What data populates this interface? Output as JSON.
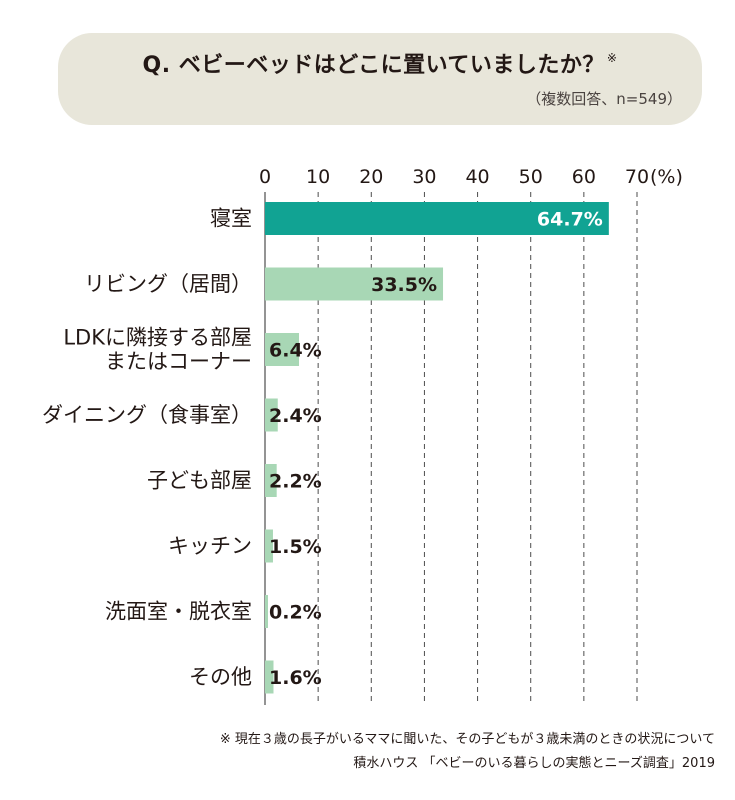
{
  "question": {
    "title": "Q. ベビーベッドはどこに置いていましたか？",
    "mark": "※",
    "note": "（複数回答、n=549）"
  },
  "chart_data": {
    "type": "bar",
    "orientation": "horizontal",
    "categories": [
      [
        "寝室"
      ],
      [
        "リビング（居間）"
      ],
      [
        "LDKに隣接する部屋",
        "またはコーナー"
      ],
      [
        "ダイニング（食事室）"
      ],
      [
        "子ども部屋"
      ],
      [
        "キッチン"
      ],
      [
        "洗面室・脱衣室"
      ],
      [
        "その他"
      ]
    ],
    "values": [
      64.7,
      33.5,
      6.4,
      2.4,
      2.2,
      1.5,
      0.2,
      1.6
    ],
    "value_labels": [
      "64.7%",
      "33.5%",
      "6.4%",
      "2.4%",
      "2.2%",
      "1.5%",
      "0.2%",
      "1.6%"
    ],
    "xlim": [
      0,
      70
    ],
    "ticks": [
      "0",
      "10",
      "20",
      "30",
      "40",
      "50",
      "60",
      "70"
    ],
    "unit": "(%)",
    "grid": "dashed-vertical",
    "colors": {
      "highlight": "#11a393",
      "bar": "#a8d7b5",
      "label_on_bar": "#ffffff",
      "label": "#231815",
      "grid": "#4d4d4d"
    }
  },
  "footnotes": [
    "※ 現在３歳の長子がいるママに聞いた、その子どもが３歳未満のときの状況について",
    "積水ハウス 「ベビーのいる暮らしの実態とニーズ調査」2019"
  ]
}
